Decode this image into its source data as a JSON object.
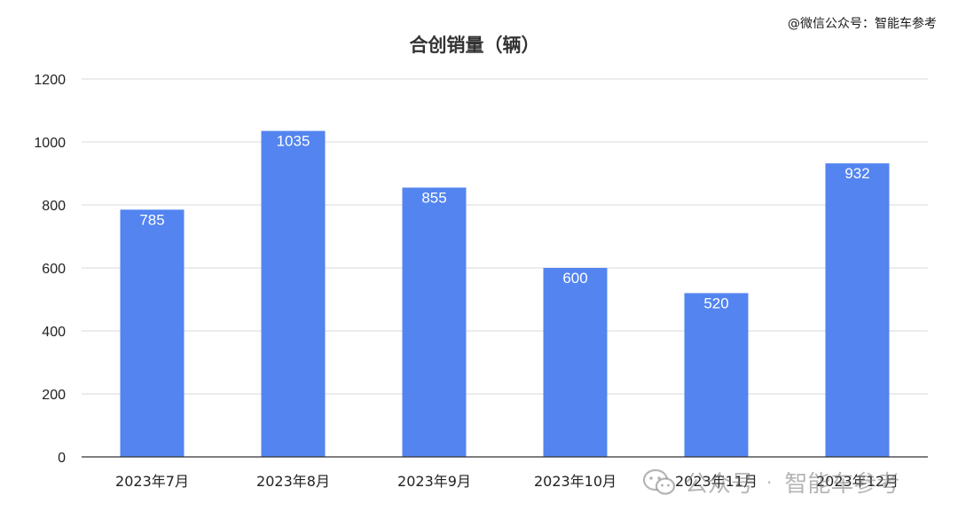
{
  "watermark": {
    "top_text": "@微信公众号：智能车参考",
    "bottom_account_label": "公众号",
    "bottom_separator": "·",
    "bottom_account_name": "智能车参考",
    "bottom_icon": "wechat-icon"
  },
  "colors": {
    "bar": "#5384F0",
    "grid": "#d9d9d9",
    "axis": "#333333"
  },
  "chart_data": {
    "type": "bar",
    "title": "合创销量（辆）",
    "xlabel": "",
    "ylabel": "",
    "categories": [
      "2023年7月",
      "2023年8月",
      "2023年9月",
      "2023年10月",
      "2023年11月",
      "2023年12月"
    ],
    "values": [
      785,
      1035,
      855,
      600,
      520,
      932
    ],
    "ylim": [
      0,
      1200
    ],
    "yticks": [
      0,
      200,
      400,
      600,
      800,
      1000,
      1200
    ],
    "grid": true,
    "legend": "none",
    "data_labels": true
  }
}
